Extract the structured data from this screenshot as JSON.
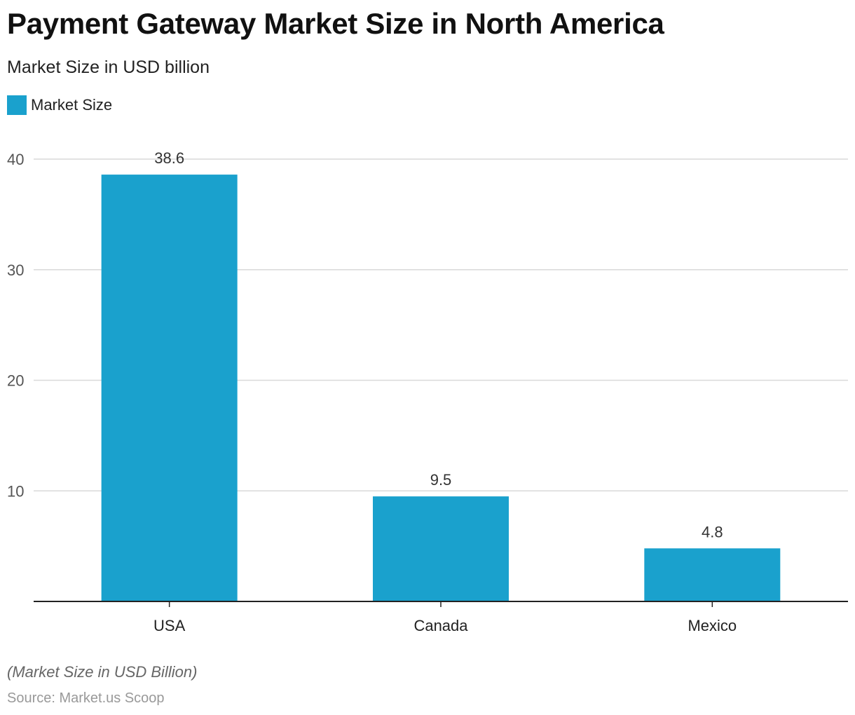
{
  "header": {
    "title": "Payment Gateway Market Size in North America",
    "subtitle": "Market Size in USD billion"
  },
  "legend": {
    "label": "Market Size"
  },
  "footer": {
    "note": "(Market Size in USD Billion)",
    "source": "Source: Market.us Scoop"
  },
  "colors": {
    "bar": "#1aa1cd",
    "grid": "#d9d9d9",
    "axis": "#222222"
  },
  "chart_data": {
    "type": "bar",
    "title": "Payment Gateway Market Size in North America",
    "subtitle": "Market Size in USD billion",
    "categories": [
      "USA",
      "Canada",
      "Mexico"
    ],
    "series": [
      {
        "name": "Market Size",
        "values": [
          38.6,
          9.5,
          4.8
        ]
      }
    ],
    "value_labels": [
      "38.6",
      "9.5",
      "4.8"
    ],
    "yticks": [
      10,
      20,
      30,
      40
    ],
    "ylim": [
      0,
      40
    ],
    "grid": true,
    "legend_position": "top-left"
  }
}
